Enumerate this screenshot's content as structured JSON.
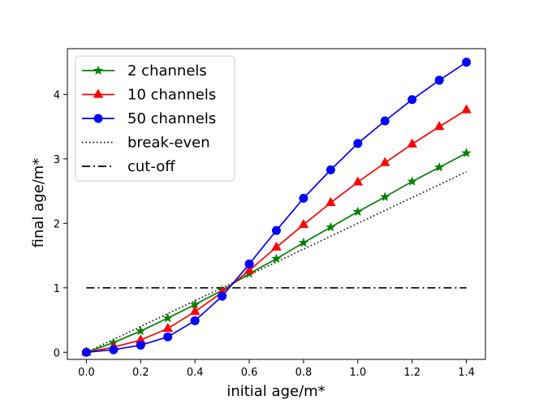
{
  "chart_data": {
    "type": "line",
    "title": "",
    "xlabel": "initial age/m*",
    "ylabel": "final age/m*",
    "xlim": [
      -0.07,
      1.47
    ],
    "ylim": [
      -0.11,
      4.71
    ],
    "grid": false,
    "legend_position": "top-left",
    "x_ticks": [
      0.0,
      0.2,
      0.4,
      0.6,
      0.8,
      1.0,
      1.2,
      1.4
    ],
    "x_tick_labels": [
      "0.0",
      "0.2",
      "0.4",
      "0.6",
      "0.8",
      "1.0",
      "1.2",
      "1.4"
    ],
    "y_ticks": [
      0,
      1,
      2,
      3,
      4
    ],
    "y_tick_labels": [
      "0",
      "1",
      "2",
      "3",
      "4"
    ],
    "series": [
      {
        "name": "2 channels",
        "color": "#008000",
        "marker": "star",
        "style": "solid",
        "x": [
          0.0,
          0.1,
          0.2,
          0.3,
          0.4,
          0.5,
          0.6,
          0.7,
          0.8,
          0.9,
          1.0,
          1.1,
          1.2,
          1.3,
          1.4
        ],
        "y": [
          0.0,
          0.15,
          0.33,
          0.53,
          0.74,
          0.96,
          1.22,
          1.45,
          1.7,
          1.94,
          2.18,
          2.41,
          2.65,
          2.87,
          3.09
        ]
      },
      {
        "name": "10 channels",
        "color": "#ff0000",
        "marker": "triangle",
        "style": "solid",
        "x": [
          0.0,
          0.1,
          0.2,
          0.3,
          0.4,
          0.5,
          0.6,
          0.7,
          0.8,
          0.9,
          1.0,
          1.1,
          1.2,
          1.3,
          1.4
        ],
        "y": [
          0.0,
          0.08,
          0.19,
          0.37,
          0.63,
          0.93,
          1.27,
          1.63,
          1.98,
          2.32,
          2.64,
          2.94,
          3.23,
          3.5,
          3.76
        ]
      },
      {
        "name": "50 channels",
        "color": "#0000ff",
        "marker": "circle",
        "style": "solid",
        "x": [
          0.0,
          0.1,
          0.2,
          0.3,
          0.4,
          0.5,
          0.6,
          0.7,
          0.8,
          0.9,
          1.0,
          1.1,
          1.2,
          1.3,
          1.4
        ],
        "y": [
          0.0,
          0.04,
          0.11,
          0.24,
          0.49,
          0.87,
          1.37,
          1.89,
          2.39,
          2.83,
          3.24,
          3.59,
          3.92,
          4.22,
          4.5
        ]
      },
      {
        "name": "break-even",
        "color": "#000000",
        "marker": "none",
        "style": "dotted",
        "x": [
          0.0,
          1.4
        ],
        "y": [
          0.0,
          2.8
        ]
      },
      {
        "name": "cut-off",
        "color": "#000000",
        "marker": "none",
        "style": "dashdot",
        "x": [
          0.0,
          1.4
        ],
        "y": [
          1.0,
          1.0
        ]
      }
    ]
  }
}
